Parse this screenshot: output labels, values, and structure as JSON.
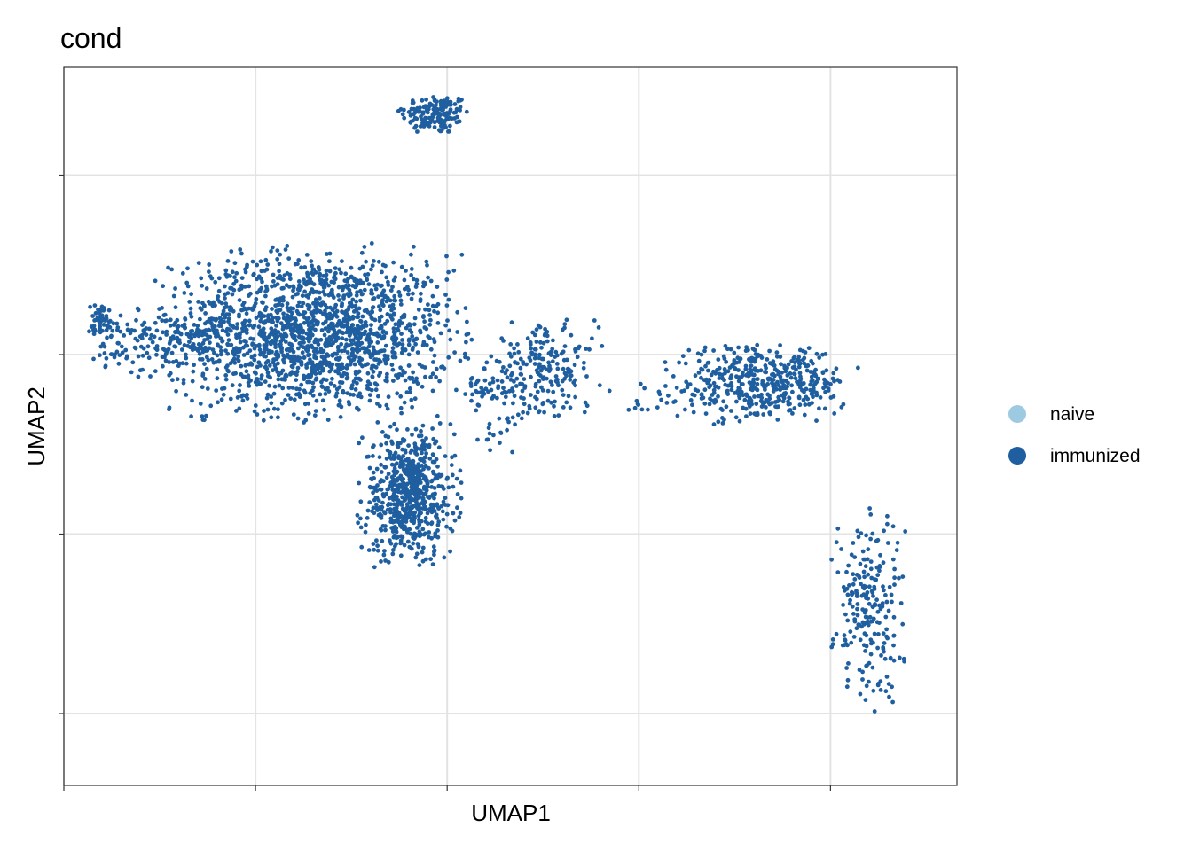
{
  "chart_data": {
    "type": "scatter",
    "title": "cond",
    "xlabel": "UMAP1",
    "ylabel": "UMAP2",
    "xlim": [
      -12,
      11.3
    ],
    "ylim": [
      -9,
      11
    ],
    "grid": true,
    "x_ticks": [
      -12,
      -7,
      -2,
      3,
      8
    ],
    "y_ticks": [
      -7,
      -2,
      3,
      8
    ],
    "tick_labels_visible": false,
    "legend": {
      "position": "right",
      "entries": [
        {
          "name": "naive",
          "color": "#9ecae1"
        },
        {
          "name": "immunized",
          "color": "#1f5fa0"
        }
      ]
    },
    "series": [
      {
        "name": "immunized",
        "color": "#1f5fa0",
        "clusters": [
          {
            "center": [
              -2.3,
              9.7
            ],
            "spread": [
              0.45,
              0.28
            ],
            "n": 150
          },
          {
            "center": [
              -5.5,
              3.6
            ],
            "spread": [
              1.8,
              1.1
            ],
            "n": 1700
          },
          {
            "center": [
              -9.5,
              3.4
            ],
            "spread": [
              0.9,
              0.5
            ],
            "n": 160
          },
          {
            "center": [
              -11.0,
              4.0
            ],
            "spread": [
              0.15,
              0.2
            ],
            "n": 50
          },
          {
            "center": [
              -3.0,
              -0.9
            ],
            "spread": [
              0.6,
              0.9
            ],
            "n": 650
          },
          {
            "center": [
              0.5,
              2.6
            ],
            "spread": [
              0.7,
              0.6
            ],
            "n": 200
          },
          {
            "center": [
              6.2,
              2.2
            ],
            "spread": [
              1.1,
              0.5
            ],
            "n": 450
          },
          {
            "center": [
              9.0,
              -4.0
            ],
            "spread": [
              0.45,
              1.3
            ],
            "n": 220
          }
        ],
        "bridges": [
          {
            "from": [
              -1.5,
              2.0
            ],
            "to": [
              -0.5,
              2.0
            ],
            "n": 40
          },
          {
            "from": [
              2.5,
              1.8
            ],
            "to": [
              4.5,
              1.8
            ],
            "n": 20
          },
          {
            "from": [
              -1.2,
              0.5
            ],
            "to": [
              0.3,
              1.5
            ],
            "n": 25
          }
        ]
      }
    ]
  }
}
